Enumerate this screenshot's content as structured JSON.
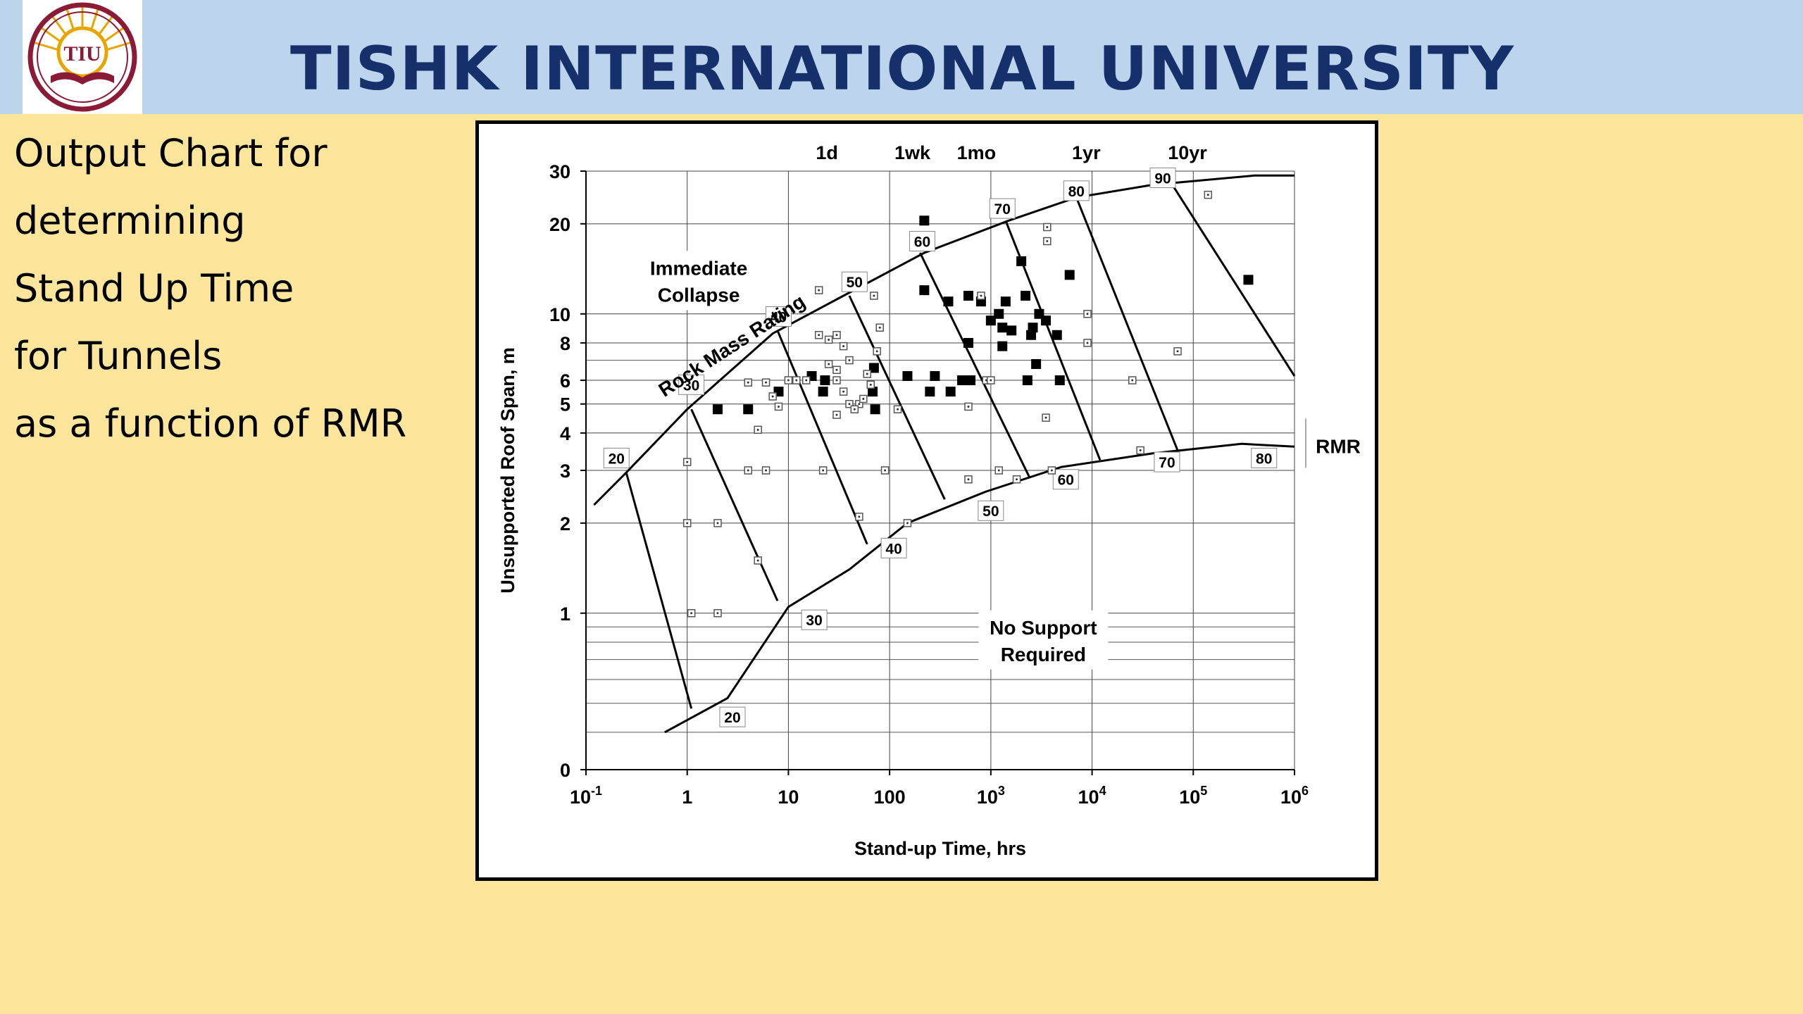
{
  "header": {
    "university": "TISHK INTERNATIONAL UNIVERSITY",
    "logo_text": "TIU",
    "background_color": "#bcd4ec",
    "title_color": "#15306b"
  },
  "description": {
    "lines": [
      "Output Chart for",
      "determining",
      "Stand Up Time",
      "for Tunnels",
      "as a function of RMR"
    ]
  },
  "chart_data": {
    "type": "scatter",
    "title": "",
    "xlabel": "Stand-up Time, hrs",
    "ylabel": "Unsupported Roof Span, m",
    "x_scale": "log",
    "y_scale": "log",
    "xlim": [
      0.1,
      1000000
    ],
    "ylim": [
      0.3,
      30
    ],
    "x_ticks": [
      {
        "value": 0.1,
        "label": "10",
        "sup": "-1"
      },
      {
        "value": 1,
        "label": "1",
        "sup": ""
      },
      {
        "value": 10,
        "label": "10",
        "sup": ""
      },
      {
        "value": 100,
        "label": "100",
        "sup": ""
      },
      {
        "value": 1000,
        "label": "10",
        "sup": "3"
      },
      {
        "value": 10000,
        "label": "10",
        "sup": "4"
      },
      {
        "value": 100000,
        "label": "10",
        "sup": "5"
      },
      {
        "value": 1000000,
        "label": "10",
        "sup": "6"
      }
    ],
    "y_ticks": [
      {
        "value": 0.3,
        "label": "0"
      },
      {
        "value": 1,
        "label": "1"
      },
      {
        "value": 2,
        "label": "2"
      },
      {
        "value": 3,
        "label": "3"
      },
      {
        "value": 4,
        "label": "4"
      },
      {
        "value": 5,
        "label": "5"
      },
      {
        "value": 6,
        "label": "6"
      },
      {
        "value": 8,
        "label": "8"
      },
      {
        "value": 10,
        "label": "10"
      },
      {
        "value": 20,
        "label": "20"
      },
      {
        "value": 30,
        "label": "30"
      }
    ],
    "top_time_labels": [
      {
        "value": 24,
        "label": "1d"
      },
      {
        "value": 168,
        "label": "1wk"
      },
      {
        "value": 720,
        "label": "1mo"
      },
      {
        "value": 8760,
        "label": "1yr"
      },
      {
        "value": 87600,
        "label": "10yr"
      }
    ],
    "extra_grid_y": [
      7,
      0.9,
      0.8,
      0.7,
      0.6,
      0.5,
      0.4
    ],
    "upper_boundary": [
      [
        0.12,
        2.3
      ],
      [
        0.25,
        2.95
      ],
      [
        1,
        4.8
      ],
      [
        7,
        8.6
      ],
      [
        35,
        11.5
      ],
      [
        220,
        16
      ],
      [
        1500,
        20.5
      ],
      [
        7000,
        24.5
      ],
      [
        40000,
        27
      ],
      [
        400000,
        29
      ],
      [
        1000000,
        29
      ]
    ],
    "lower_boundary": [
      [
        0.6,
        0.4
      ],
      [
        2.5,
        0.52
      ],
      [
        10,
        1.05
      ],
      [
        40,
        1.4
      ],
      [
        150,
        2
      ],
      [
        900,
        2.55
      ],
      [
        5000,
        3.08
      ],
      [
        40000,
        3.42
      ],
      [
        300000,
        3.68
      ],
      [
        1000000,
        3.6
      ]
    ],
    "rmr_lines": [
      {
        "label": "20",
        "top": [
          0.25,
          2.95
        ],
        "bottom": [
          1.1,
          0.48
        ]
      },
      {
        "label": "30",
        "top": [
          1.1,
          4.8
        ],
        "bottom": [
          7.8,
          1.1
        ]
      },
      {
        "label": "40",
        "top": [
          7.8,
          8.8
        ],
        "bottom": [
          60,
          1.7
        ]
      },
      {
        "label": "50",
        "top": [
          40,
          11.5
        ],
        "bottom": [
          350,
          2.4
        ]
      },
      {
        "label": "60",
        "top": [
          200,
          16
        ],
        "bottom": [
          2400,
          2.85
        ]
      },
      {
        "label": "70",
        "top": [
          1400,
          20.5
        ],
        "bottom": [
          12000,
          3.25
        ]
      },
      {
        "label": "80",
        "top": [
          7000,
          24.5
        ],
        "bottom": [
          70000,
          3.5
        ]
      },
      {
        "label": "90",
        "top": [
          60000,
          27.5
        ],
        "bottom": [
          1000000,
          6.2
        ]
      }
    ],
    "upper_labels": [
      {
        "label": "20",
        "x": 0.2,
        "y": 3.3
      },
      {
        "label": "30",
        "x": 1.1,
        "y": 5.8
      },
      {
        "label": "40",
        "x": 8,
        "y": 9.8
      },
      {
        "label": "50",
        "x": 45,
        "y": 12.8
      },
      {
        "label": "60",
        "x": 210,
        "y": 17.5
      },
      {
        "label": "70",
        "x": 1300,
        "y": 22.5
      },
      {
        "label": "80",
        "x": 7000,
        "y": 25.8
      },
      {
        "label": "90",
        "x": 50000,
        "y": 28.5
      }
    ],
    "lower_labels": [
      {
        "label": "20",
        "x": 2.8,
        "y": 0.45
      },
      {
        "label": "30",
        "x": 18,
        "y": 0.95
      },
      {
        "label": "40",
        "x": 110,
        "y": 1.65
      },
      {
        "label": "50",
        "x": 1000,
        "y": 2.2
      },
      {
        "label": "60",
        "x": 5500,
        "y": 2.8
      },
      {
        "label": "70",
        "x": 55000,
        "y": 3.2
      },
      {
        "label": "80",
        "x": 500000,
        "y": 3.3
      }
    ],
    "region_labels": [
      {
        "lines": [
          "Immediate",
          "Collapse"
        ],
        "x": 1.3,
        "y": 13.5
      },
      {
        "lines": [
          "No Support",
          "Required"
        ],
        "x": 3300,
        "y": 0.85
      }
    ],
    "curve_label": {
      "text": "Rock Mass Rating",
      "x": 3,
      "y": 7.5,
      "angle": -33
    },
    "rmr_axis_label": "RMR",
    "series": [
      {
        "name": "",
        "marker": "filled-square",
        "points": [
          [
            2,
            4.8
          ],
          [
            4,
            4.8
          ],
          [
            8,
            5.5
          ],
          [
            22,
            5.5
          ],
          [
            23,
            6
          ],
          [
            17,
            6.2
          ],
          [
            70,
            6.6
          ],
          [
            72,
            4.8
          ],
          [
            68,
            5.5
          ],
          [
            150,
            6.2
          ],
          [
            280,
            6.2
          ],
          [
            250,
            5.5
          ],
          [
            400,
            5.5
          ],
          [
            520,
            6
          ],
          [
            630,
            6
          ],
          [
            220,
            20.5
          ],
          [
            220,
            12
          ],
          [
            380,
            11
          ],
          [
            600,
            11.5
          ],
          [
            800,
            11
          ],
          [
            1000,
            9.5
          ],
          [
            1200,
            10
          ],
          [
            1400,
            11
          ],
          [
            1300,
            9
          ],
          [
            1600,
            8.8
          ],
          [
            2200,
            11.5
          ],
          [
            2000,
            15
          ],
          [
            2600,
            9
          ],
          [
            3000,
            10
          ],
          [
            3500,
            9.5
          ],
          [
            2500,
            8.5
          ],
          [
            4500,
            8.5
          ],
          [
            2800,
            6.8
          ],
          [
            2300,
            6
          ],
          [
            4800,
            6
          ],
          [
            1300,
            7.8
          ],
          [
            6000,
            13.5
          ],
          [
            600,
            8
          ],
          [
            350000,
            13
          ]
        ]
      },
      {
        "name": "",
        "marker": "open-square",
        "points": [
          [
            1,
            3.2
          ],
          [
            1,
            2
          ],
          [
            2,
            2
          ],
          [
            1.1,
            1
          ],
          [
            2,
            1
          ],
          [
            5,
            1.5
          ],
          [
            5,
            4.1
          ],
          [
            4,
            3
          ],
          [
            6,
            3
          ],
          [
            4,
            5.9
          ],
          [
            6,
            5.9
          ],
          [
            7,
            5.3
          ],
          [
            8,
            4.9
          ],
          [
            10,
            6
          ],
          [
            12,
            6
          ],
          [
            15,
            6
          ],
          [
            20,
            8.5
          ],
          [
            25,
            8.2
          ],
          [
            30,
            8.5
          ],
          [
            35,
            7.8
          ],
          [
            40,
            7
          ],
          [
            30,
            6.5
          ],
          [
            25,
            6.8
          ],
          [
            30,
            6
          ],
          [
            35,
            5.5
          ],
          [
            40,
            5
          ],
          [
            50,
            5
          ],
          [
            30,
            4.6
          ],
          [
            45,
            4.8
          ],
          [
            55,
            5.2
          ],
          [
            60,
            6.3
          ],
          [
            65,
            5.8
          ],
          [
            75,
            7.5
          ],
          [
            80,
            9
          ],
          [
            70,
            11.5
          ],
          [
            20,
            12
          ],
          [
            22,
            3
          ],
          [
            50,
            2.1
          ],
          [
            90,
            3
          ],
          [
            120,
            4.8
          ],
          [
            150,
            2
          ],
          [
            600,
            2.8
          ],
          [
            1200,
            3
          ],
          [
            1800,
            2.8
          ],
          [
            600,
            4.9
          ],
          [
            900,
            6
          ],
          [
            1000,
            6
          ],
          [
            800,
            11.5
          ],
          [
            3500,
            4.5
          ],
          [
            3600,
            17.5
          ],
          [
            3600,
            19.5
          ],
          [
            9000,
            8
          ],
          [
            9000,
            10
          ],
          [
            25000,
            6
          ],
          [
            70000,
            7.5
          ],
          [
            140000,
            25
          ],
          [
            4000,
            3
          ],
          [
            30000,
            3.5
          ]
        ]
      }
    ]
  }
}
